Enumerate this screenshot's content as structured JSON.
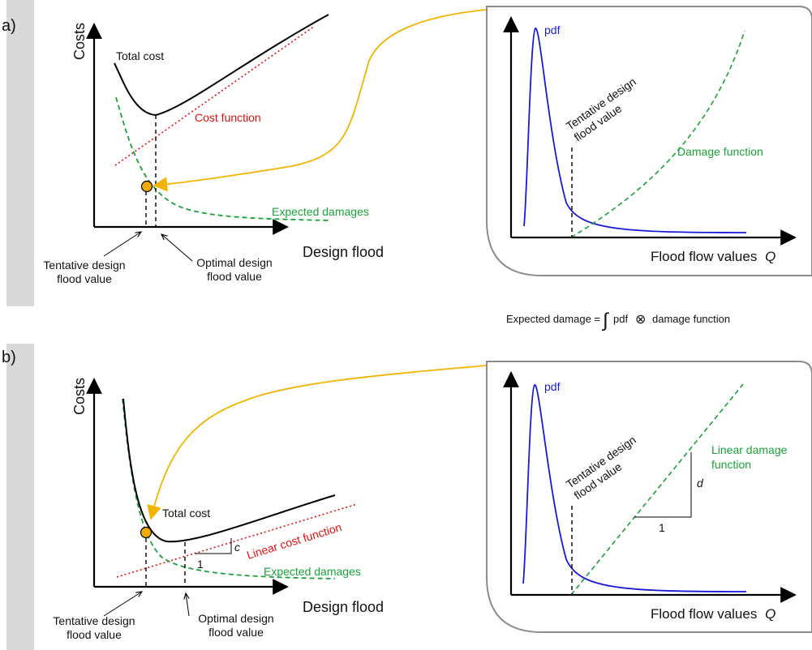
{
  "colors": {
    "side_bar": "#d9d9d9",
    "axis": "#000000",
    "total_cost": "#000000",
    "cost_function": "#e01010",
    "expected_damages": "#1aa23a",
    "pdf": "#1a1ad6",
    "connector": "#f2b400",
    "marker_fill": "#f2a900",
    "inset_border": "#8c8c8c"
  },
  "panel_a": {
    "label": "a)",
    "y_axis_label": "Costs",
    "x_axis_label": "Design flood",
    "total_cost": "Total cost",
    "cost_function": "Cost function",
    "expected_damages": "Expected damages",
    "tentative_line1": "Tentative design",
    "tentative_line2": "flood value",
    "optimal_line1": "Optimal design",
    "optimal_line2": "flood value",
    "inset": {
      "pdf": "pdf",
      "tentative_line1": "Tentative design",
      "tentative_line2": "flood value",
      "damage_function": "Damage function",
      "x_axis_label": "Flood flow values",
      "x_axis_symbol": "Q",
      "pdf_icon": "lognormal-curve-icon"
    }
  },
  "formula": {
    "lhs": "Expected damage =",
    "integral": "∫",
    "pdf": "pdf",
    "operator": "⊗",
    "rhs": "damage function"
  },
  "panel_b": {
    "label": "b)",
    "y_axis_label": "Costs",
    "x_axis_label": "Design flood",
    "total_cost": "Total cost",
    "cost_function": "Linear cost function",
    "expected_damages": "Expected damages",
    "slope_symbol": "c",
    "slope_run": "1",
    "tentative_line1": "Tentative design",
    "tentative_line2": "flood value",
    "optimal_line1": "Optimal design",
    "optimal_line2": "flood value",
    "inset": {
      "pdf": "pdf",
      "tentative_line1": "Tentative design",
      "tentative_line2": "flood value",
      "damage_function_line1": "Linear damage",
      "damage_function_line2": "function",
      "slope_symbol": "d",
      "slope_run": "1",
      "x_axis_label": "Flood flow values",
      "x_axis_symbol": "Q"
    }
  }
}
